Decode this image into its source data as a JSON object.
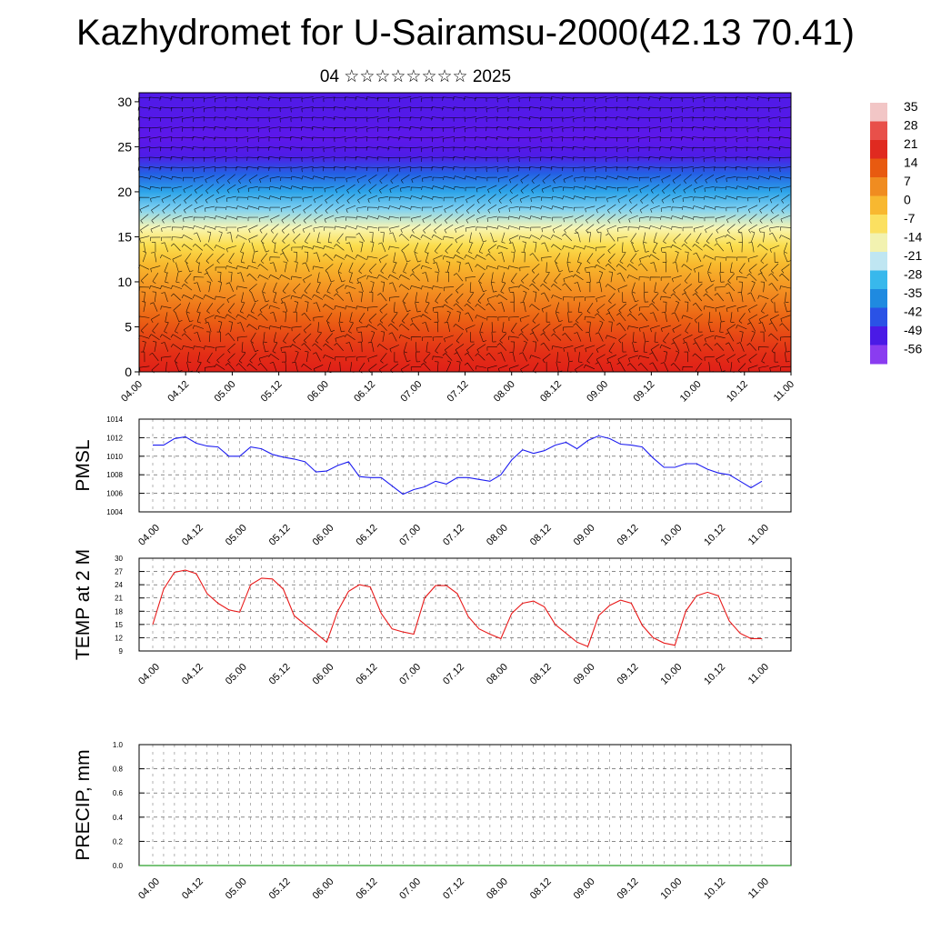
{
  "title": "Kazhydromet for U-Sairamsu-2000(42.13 70.41)",
  "subtitle": "04 ☆☆☆☆☆☆☆☆ 2025",
  "chart_data": [
    {
      "type": "heatmap",
      "variable": "temperature cross-section with wind vectors",
      "x_tick_labels": [
        "04.00",
        "04.12",
        "05.00",
        "05.12",
        "06.00",
        "06.12",
        "07.00",
        "07.12",
        "08.00",
        "08.12",
        "09.00",
        "09.12",
        "10.00",
        "10.12",
        "11.00"
      ],
      "y_ticks": [
        0,
        5,
        10,
        15,
        20,
        25,
        30
      ],
      "ylim": [
        0,
        31
      ],
      "colorbar_labels": [
        "35",
        "28",
        "21",
        "14",
        "7",
        "0",
        "-7",
        "-14",
        "-21",
        "-28",
        "-35",
        "-42",
        "-49",
        "-56"
      ],
      "colorbar_colors": [
        "#f2c6c6",
        "#e8504a",
        "#e02a20",
        "#e85a10",
        "#f08c20",
        "#f8b830",
        "#fbe060",
        "#f2f2b0",
        "#bfe6f2",
        "#38b8ec",
        "#1f8ae0",
        "#2a52e6",
        "#4a1ae6",
        "#8a3cf0"
      ],
      "approx_temperature_by_height": {
        "heights": [
          0,
          2,
          4,
          6,
          8,
          10,
          12,
          14,
          16,
          18,
          20,
          22,
          24,
          26,
          28,
          30
        ],
        "values": [
          26,
          22,
          18,
          14,
          10,
          6,
          2,
          -4,
          -12,
          -22,
          -32,
          -42,
          -54,
          -58,
          -56,
          -55
        ]
      },
      "grid": false
    },
    {
      "type": "line",
      "ylabel": "PMSL",
      "x_tick_labels": [
        "04.00",
        "04.12",
        "05.00",
        "05.12",
        "06.00",
        "06.12",
        "07.00",
        "07.12",
        "08.00",
        "08.12",
        "09.00",
        "09.12",
        "10.00",
        "10.12",
        "11.00"
      ],
      "y_ticks": [
        1004,
        1006,
        1008,
        1010,
        1012,
        1014
      ],
      "ylim": [
        1004,
        1014
      ],
      "color": "#1c1cf0",
      "x_hours": [
        0,
        3,
        6,
        9,
        12,
        15,
        18,
        21,
        24,
        27,
        30,
        33,
        36,
        39,
        42,
        45,
        48,
        51,
        54,
        57,
        60,
        63,
        66,
        69,
        72,
        75,
        78,
        81,
        84,
        87,
        90,
        93,
        96,
        99,
        102,
        105,
        108,
        111,
        114,
        117,
        120,
        123,
        126,
        129,
        132,
        135,
        138,
        141,
        144,
        147,
        150,
        153,
        156,
        159,
        162,
        165,
        168
      ],
      "values": [
        1011.2,
        1011.2,
        1011.9,
        1012.1,
        1011.4,
        1011.1,
        1011.0,
        1010.0,
        1010.0,
        1011.0,
        1010.8,
        1010.2,
        1009.9,
        1009.7,
        1009.4,
        1008.3,
        1008.4,
        1009.0,
        1009.4,
        1007.8,
        1007.7,
        1007.7,
        1006.8,
        1005.9,
        1006.4,
        1006.7,
        1007.3,
        1007.0,
        1007.7,
        1007.7,
        1007.5,
        1007.3,
        1008.0,
        1009.6,
        1010.7,
        1010.3,
        1010.6,
        1011.2,
        1011.5,
        1010.8,
        1011.7,
        1012.2,
        1011.9,
        1011.3,
        1011.2,
        1011.0,
        1009.8,
        1008.8,
        1008.8,
        1009.2,
        1009.2,
        1008.6,
        1008.2,
        1008.0,
        1007.3,
        1006.6,
        1007.3
      ]
    },
    {
      "type": "line",
      "ylabel": "TEMP at 2 M",
      "x_tick_labels": [
        "04.00",
        "04.12",
        "05.00",
        "05.12",
        "06.00",
        "06.12",
        "07.00",
        "07.12",
        "08.00",
        "08.12",
        "09.00",
        "09.12",
        "10.00",
        "10.12",
        "11.00"
      ],
      "y_ticks": [
        9,
        12,
        15,
        18,
        21,
        24,
        27,
        30
      ],
      "ylim": [
        9,
        30
      ],
      "color": "#e81a1a",
      "x_hours": [
        0,
        3,
        6,
        9,
        12,
        15,
        18,
        21,
        24,
        27,
        30,
        33,
        36,
        39,
        42,
        45,
        48,
        51,
        54,
        57,
        60,
        63,
        66,
        69,
        72,
        75,
        78,
        81,
        84,
        87,
        90,
        93,
        96,
        99,
        102,
        105,
        108,
        111,
        114,
        117,
        120,
        123,
        126,
        129,
        132,
        135,
        138,
        141,
        144,
        147,
        150,
        153,
        156,
        159,
        162,
        165,
        168
      ],
      "values": [
        15.0,
        23.0,
        26.8,
        27.3,
        26.5,
        22.0,
        19.8,
        18.3,
        17.8,
        24.0,
        25.5,
        25.3,
        23.0,
        17.0,
        15.0,
        13.0,
        11.0,
        18.0,
        22.5,
        24.0,
        23.5,
        17.5,
        14.0,
        13.3,
        12.8,
        21.0,
        23.8,
        23.8,
        22.0,
        16.8,
        14.0,
        12.8,
        11.8,
        17.5,
        19.8,
        20.3,
        19.0,
        15.0,
        13.0,
        11.0,
        10.0,
        17.0,
        19.3,
        20.5,
        19.8,
        14.8,
        12.0,
        10.8,
        10.3,
        18.0,
        21.5,
        22.3,
        21.5,
        15.8,
        13.0,
        11.8,
        11.8
      ]
    },
    {
      "type": "line",
      "ylabel": "PRECIP, mm",
      "x_tick_labels": [
        "04.00",
        "04.12",
        "05.00",
        "05.12",
        "06.00",
        "06.12",
        "07.00",
        "07.12",
        "08.00",
        "08.12",
        "09.00",
        "09.12",
        "10.00",
        "10.12",
        "11.00"
      ],
      "y_tick_labels": [
        "0.0",
        "0.2",
        "0.4",
        "0.6",
        "0.8",
        "1.0"
      ],
      "ylim": [
        0,
        1
      ],
      "color": "#2aa02a",
      "values": [
        0,
        0
      ]
    }
  ]
}
